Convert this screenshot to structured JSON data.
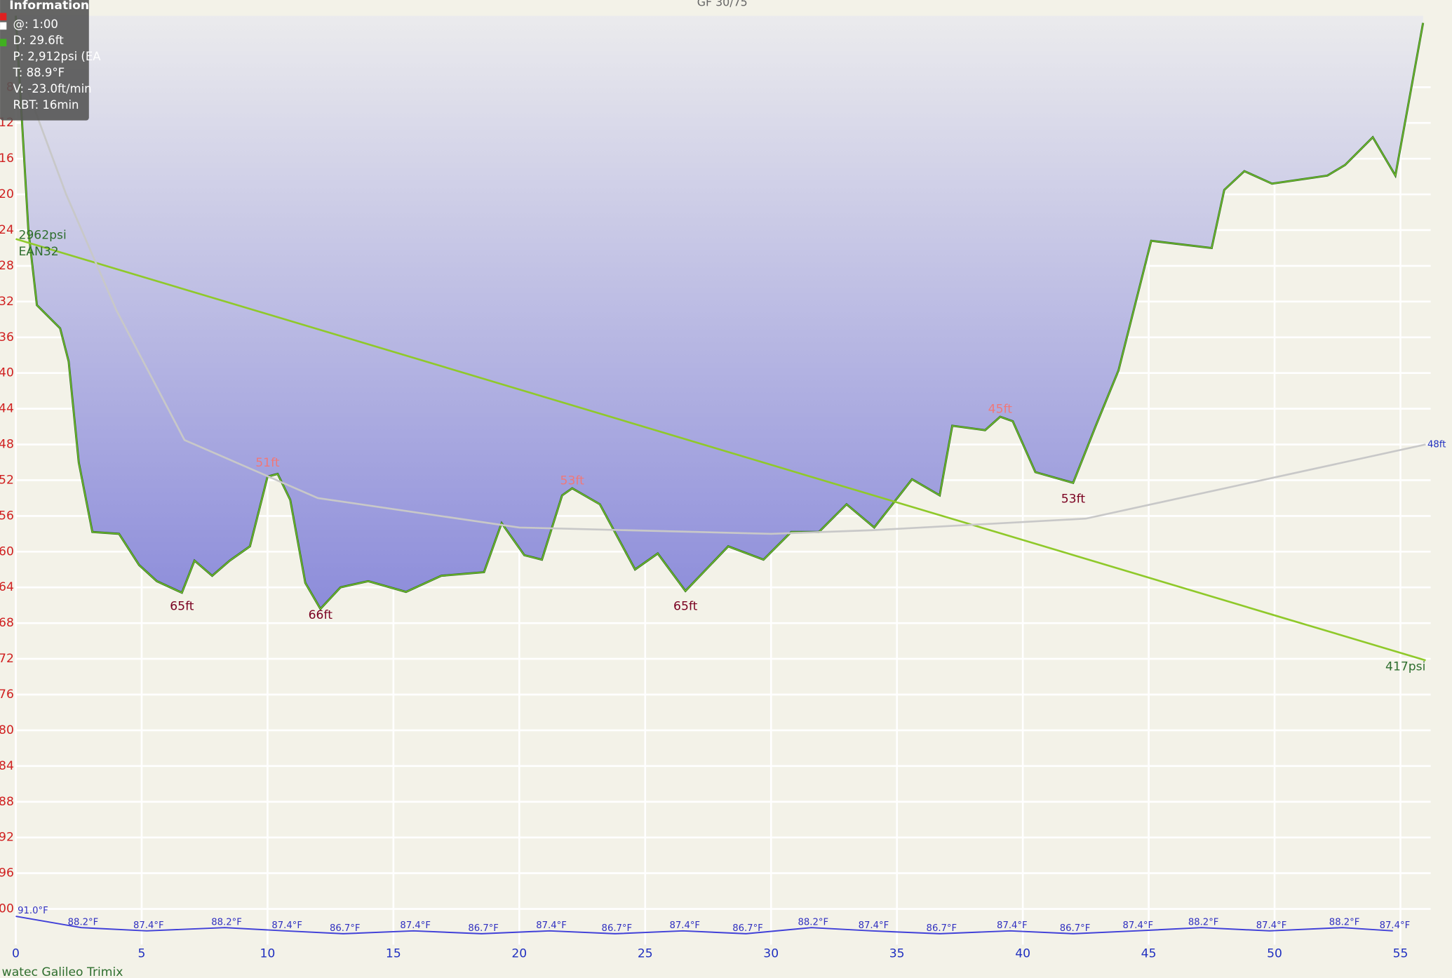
{
  "chart_data": {
    "type": "line",
    "title": "GF 30/75",
    "footer": "watec Galileo Trimix",
    "xlim": [
      0,
      56.2
    ],
    "ylim": [
      0,
      104
    ],
    "y_inverted": true,
    "grid": true,
    "xticks": [
      0,
      5,
      10,
      15,
      20,
      25,
      30,
      35,
      40,
      45,
      50,
      55
    ],
    "yticks": [
      8,
      12,
      16,
      20,
      24,
      28,
      32,
      36,
      40,
      44,
      48,
      52,
      56,
      60,
      64,
      68,
      72,
      76,
      80,
      84,
      88,
      92,
      96,
      100
    ],
    "y2lim": [
      -1300,
      4310
    ],
    "y3lim": [
      84,
      92
    ],
    "series": [
      {
        "color": "#2b6e1a",
        "fill": "#9494dc",
        "x": [
          0,
          0.5,
          0.84,
          1.76,
          2.1,
          2.5,
          3.04,
          4.1,
          4.9,
          5.6,
          6.6,
          7.1,
          7.8,
          8.5,
          9.3,
          10.0,
          10.4,
          10.9,
          11.5,
          12.1,
          12.9,
          14,
          15.5,
          16.9,
          18.6,
          19.3,
          20.2,
          20.9,
          21.7,
          22.1,
          23.2,
          24.6,
          25.5,
          26.6,
          28.3,
          29.7,
          30.8,
          31.9,
          33,
          34.1,
          35.6,
          36.7,
          37.2,
          38.5,
          39.1,
          39.6,
          40.5,
          42,
          42.9,
          43.8,
          45.1,
          47.5,
          48,
          48.8,
          49.9,
          52.1,
          52.8,
          53.9,
          54.8,
          55.4,
          55.9
        ],
        "values": [
          0,
          24,
          32.4,
          35,
          38.7,
          50,
          57.8,
          58,
          61.5,
          63.3,
          64.6,
          61,
          62.7,
          61,
          59.4,
          51.6,
          51.3,
          54.2,
          63.5,
          66.4,
          64,
          63.3,
          64.5,
          62.7,
          62.3,
          56.8,
          60.4,
          60.9,
          53.7,
          52.9,
          54.7,
          62,
          60.2,
          64.4,
          59.4,
          60.9,
          57.8,
          57.8,
          54.7,
          57.3,
          51.9,
          53.7,
          45.9,
          46.4,
          44.9,
          45.4,
          51.1,
          52.3,
          45.9,
          39.7,
          25.2,
          26,
          19.5,
          17.4,
          18.8,
          17.9,
          16.7,
          13.6,
          17.9,
          8.6,
          0.8
        ]
      },
      {
        "axis": "y2",
        "color": "#8fc92a",
        "gas": "EAN32",
        "x": [
          0,
          10,
          20,
          30,
          40,
          50,
          56
        ],
        "values": [
          2962,
          2508,
          2053,
          1598,
          1144,
          689,
          417
        ],
        "value_labels": [
          "2962psi",
          null,
          null,
          null,
          null,
          null,
          "417psi"
        ]
      },
      {
        "color": "#c8c8c8",
        "x": [
          0.5,
          2,
          4,
          6.7,
          12,
          20,
          30,
          34,
          42.5,
          56
        ],
        "values": [
          8.6,
          20,
          33,
          47.5,
          54,
          57.3,
          58,
          57.6,
          56.3,
          48
        ],
        "value_labels": [
          null,
          null,
          null,
          null,
          null,
          null,
          null,
          null,
          null,
          "48ft"
        ]
      },
      {
        "axis": "y3",
        "color": "#4040d8",
        "x": [
          0,
          2.6,
          5.2,
          8.3,
          10.7,
          13.0,
          15.8,
          18.5,
          21.2,
          23.8,
          26.5,
          29,
          31.6,
          34,
          36.7,
          39.5,
          42,
          44.5,
          47.1,
          49.8,
          52.7,
          54.7
        ],
        "values": [
          91.0,
          88.2,
          87.4,
          88.2,
          87.4,
          86.7,
          87.4,
          86.7,
          87.4,
          86.7,
          87.4,
          86.7,
          88.2,
          87.4,
          86.7,
          87.4,
          86.7,
          87.4,
          88.2,
          87.4,
          88.2,
          87.4
        ],
        "value_labels": [
          "91.0°F",
          "88.2°F",
          "87.4°F",
          "88.2°F",
          "87.4°F",
          "86.7°F",
          "87.4°F",
          "86.7°F",
          "87.4°F",
          "86.7°F",
          "87.4°F",
          "86.7°F",
          "88.2°F",
          "87.4°F",
          "86.7°F",
          "87.4°F",
          "86.7°F",
          "87.4°F",
          "88.2°F",
          "87.4°F",
          "88.2°F",
          "87.4°F"
        ]
      }
    ],
    "annotations": [
      {
        "x": 6.6,
        "y": 65,
        "label": "65ft",
        "color": "#7a0020"
      },
      {
        "x": 12.1,
        "y": 66,
        "label": "66ft",
        "color": "#7a0020"
      },
      {
        "x": 26.6,
        "y": 65,
        "label": "65ft",
        "color": "#7a0020"
      },
      {
        "x": 42,
        "y": 53,
        "label": "53ft",
        "color": "#7a0020"
      },
      {
        "x": 10.0,
        "y": 51,
        "label": "51ft",
        "color": "#f07878"
      },
      {
        "x": 22.1,
        "y": 53,
        "label": "53ft",
        "color": "#f07878"
      },
      {
        "x": 39.1,
        "y": 45,
        "label": "45ft",
        "color": "#f07878"
      }
    ]
  },
  "info": {
    "title": "Information",
    "lines": [
      "@: 1:00",
      "D: 29.6ft",
      "P: 2,912psi (EA",
      "T: 88.9°F",
      "V: -23.0ft/min",
      "RBT: 16min"
    ]
  }
}
